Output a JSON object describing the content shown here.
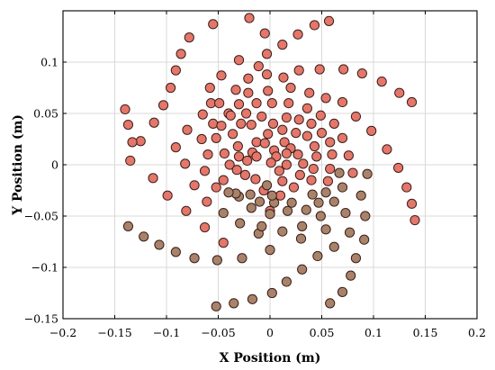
{
  "chart_data": {
    "type": "scatter",
    "title": "",
    "xlabel": "X Position (m)",
    "ylabel": "Y Position (m)",
    "xlim": [
      -0.2,
      0.2
    ],
    "ylim": [
      -0.15,
      0.15
    ],
    "xticks": [
      -0.2,
      -0.15,
      -0.1,
      -0.05,
      0,
      0.05,
      0.1,
      0.15,
      0.2
    ],
    "yticks": [
      -0.15,
      -0.1,
      -0.05,
      0,
      0.05,
      0.1
    ],
    "xtick_labels": [
      "−0.2",
      "−0.15",
      "−0.1",
      "−0.05",
      "0",
      "0.05",
      "0.1",
      "0.15",
      "0.2"
    ],
    "ytick_labels": [
      "−0.15",
      "−0.1",
      "−0.05",
      "0",
      "0.05",
      "0.1"
    ],
    "grid": true,
    "colors": {
      "upper_fill": "#e5766a",
      "lower_fill": "#a8836a",
      "edge": "#3a1f1a"
    },
    "series": [
      {
        "fill": "upper",
        "points": [
          [
            -0.055,
            0.137
          ],
          [
            -0.078,
            0.124
          ],
          [
            -0.086,
            0.108
          ],
          [
            -0.091,
            0.092
          ],
          [
            -0.096,
            0.075
          ],
          [
            -0.103,
            0.058
          ],
          [
            -0.112,
            0.041
          ],
          [
            -0.125,
            0.023
          ],
          [
            -0.135,
            0.004
          ],
          [
            -0.113,
            -0.013
          ],
          [
            -0.099,
            -0.03
          ],
          [
            -0.081,
            -0.045
          ],
          [
            -0.063,
            -0.061
          ],
          [
            -0.045,
            -0.076
          ],
          [
            -0.14,
            0.054
          ],
          [
            -0.137,
            0.039
          ],
          [
            -0.133,
            0.022
          ],
          [
            -0.03,
            0.102
          ],
          [
            -0.047,
            0.087
          ],
          [
            -0.058,
            0.075
          ],
          [
            -0.057,
            0.06
          ],
          [
            -0.065,
            0.049
          ],
          [
            -0.08,
            0.034
          ],
          [
            -0.091,
            0.017
          ],
          [
            -0.082,
            0.001
          ],
          [
            -0.073,
            -0.02
          ],
          [
            -0.061,
            -0.036
          ],
          [
            -0.003,
            0.108
          ],
          [
            -0.011,
            0.096
          ],
          [
            -0.021,
            0.084
          ],
          [
            -0.033,
            0.073
          ],
          [
            -0.049,
            0.06
          ],
          [
            -0.04,
            0.05
          ],
          [
            -0.055,
            0.04
          ],
          [
            -0.066,
            0.025
          ],
          [
            -0.06,
            0.01
          ],
          [
            -0.063,
            -0.006
          ],
          [
            -0.052,
            -0.022
          ],
          [
            -0.003,
            0.088
          ],
          [
            -0.021,
            0.07
          ],
          [
            -0.03,
            0.059
          ],
          [
            -0.038,
            0.048
          ],
          [
            -0.047,
            0.038
          ],
          [
            -0.052,
            0.026
          ],
          [
            -0.044,
            0.011
          ],
          [
            -0.039,
            0.0
          ],
          [
            -0.002,
            0.072
          ],
          [
            -0.013,
            0.06
          ],
          [
            -0.023,
            0.05
          ],
          [
            -0.028,
            0.04
          ],
          [
            -0.036,
            0.03
          ],
          [
            -0.031,
            0.018
          ],
          [
            -0.03,
            0.008
          ],
          [
            -0.022,
            0.004
          ],
          [
            0.002,
            0.06
          ],
          [
            -0.008,
            0.047
          ],
          [
            -0.018,
            0.039
          ],
          [
            -0.013,
            0.022
          ],
          [
            -0.017,
            0.012
          ],
          [
            -0.013,
            0.008
          ],
          [
            0.003,
            0.04
          ],
          [
            -0.002,
            0.03
          ],
          [
            -0.005,
            0.021
          ],
          [
            0.004,
            0.014
          ],
          [
            0.006,
            0.008
          ],
          [
            0.001,
            0.002
          ],
          [
            -0.02,
            0.143
          ],
          [
            -0.005,
            0.128
          ],
          [
            0.012,
            0.117
          ],
          [
            0.027,
            0.127
          ],
          [
            0.043,
            0.136
          ],
          [
            0.057,
            0.14
          ],
          [
            0.013,
            0.085
          ],
          [
            0.028,
            0.092
          ],
          [
            0.048,
            0.093
          ],
          [
            0.071,
            0.093
          ],
          [
            0.089,
            0.089
          ],
          [
            0.108,
            0.081
          ],
          [
            0.125,
            0.07
          ],
          [
            0.137,
            0.061
          ],
          [
            0.02,
            0.075
          ],
          [
            0.038,
            0.07
          ],
          [
            0.054,
            0.065
          ],
          [
            0.07,
            0.061
          ],
          [
            0.083,
            0.047
          ],
          [
            0.098,
            0.033
          ],
          [
            0.113,
            0.015
          ],
          [
            0.124,
            -0.003
          ],
          [
            0.132,
            -0.022
          ],
          [
            0.137,
            -0.038
          ],
          [
            0.14,
            -0.054
          ],
          [
            0.018,
            0.06
          ],
          [
            0.036,
            0.055
          ],
          [
            0.049,
            0.048
          ],
          [
            0.062,
            0.04
          ],
          [
            0.07,
            0.026
          ],
          [
            0.076,
            0.009
          ],
          [
            0.08,
            -0.008
          ],
          [
            0.016,
            0.046
          ],
          [
            0.028,
            0.044
          ],
          [
            0.04,
            0.04
          ],
          [
            0.05,
            0.031
          ],
          [
            0.058,
            0.022
          ],
          [
            0.06,
            0.01
          ],
          [
            0.058,
            -0.004
          ],
          [
            0.056,
            -0.016
          ],
          [
            0.012,
            0.034
          ],
          [
            0.025,
            0.031
          ],
          [
            0.036,
            0.028
          ],
          [
            0.043,
            0.018
          ],
          [
            0.045,
            0.008
          ],
          [
            0.042,
            -0.004
          ],
          [
            0.04,
            -0.015
          ],
          [
            0.014,
            0.022
          ],
          [
            0.02,
            0.016
          ],
          [
            0.027,
            0.01
          ],
          [
            0.032,
            0.001
          ],
          [
            0.029,
            -0.01
          ],
          [
            0.023,
            -0.022
          ],
          [
            0.016,
            0.011
          ],
          [
            0.016,
            0.0
          ],
          [
            0.009,
            -0.006
          ],
          [
            0.012,
            -0.016
          ],
          [
            0.01,
            -0.03
          ],
          [
            -0.006,
            -0.025
          ],
          [
            -0.014,
            -0.014
          ],
          [
            -0.024,
            -0.01
          ],
          [
            -0.032,
            -0.005
          ],
          [
            -0.045,
            -0.015
          ],
          [
            0.0,
            -0.045
          ]
        ]
      },
      {
        "fill": "lower",
        "points": [
          [
            -0.137,
            -0.06
          ],
          [
            -0.122,
            -0.07
          ],
          [
            -0.107,
            -0.078
          ],
          [
            -0.091,
            -0.085
          ],
          [
            -0.073,
            -0.091
          ],
          [
            -0.051,
            -0.093
          ],
          [
            -0.027,
            -0.091
          ],
          [
            0.0,
            -0.083
          ],
          [
            0.03,
            -0.072
          ],
          [
            0.054,
            -0.063
          ],
          [
            0.073,
            -0.047
          ],
          [
            0.088,
            -0.03
          ],
          [
            0.094,
            -0.009
          ],
          [
            -0.052,
            -0.138
          ],
          [
            -0.035,
            -0.135
          ],
          [
            -0.017,
            -0.131
          ],
          [
            0.002,
            -0.125
          ],
          [
            0.016,
            -0.114
          ],
          [
            0.031,
            -0.102
          ],
          [
            0.046,
            -0.089
          ],
          [
            0.062,
            -0.08
          ],
          [
            0.077,
            -0.066
          ],
          [
            0.092,
            -0.05
          ],
          [
            0.091,
            -0.073
          ],
          [
            0.083,
            -0.091
          ],
          [
            0.078,
            -0.108
          ],
          [
            0.07,
            -0.124
          ],
          [
            0.058,
            -0.135
          ],
          [
            -0.045,
            -0.047
          ],
          [
            -0.029,
            -0.057
          ],
          [
            -0.011,
            -0.067
          ],
          [
            0.012,
            -0.065
          ],
          [
            0.031,
            -0.06
          ],
          [
            0.049,
            -0.05
          ],
          [
            0.062,
            -0.036
          ],
          [
            0.07,
            -0.022
          ],
          [
            0.067,
            -0.008
          ],
          [
            -0.03,
            -0.031
          ],
          [
            -0.018,
            -0.042
          ],
          [
            0.0,
            -0.048
          ],
          [
            0.017,
            -0.045
          ],
          [
            0.035,
            -0.044
          ],
          [
            0.047,
            -0.037
          ],
          [
            0.054,
            -0.027
          ],
          [
            0.041,
            -0.029
          ],
          [
            0.021,
            -0.037
          ],
          [
            0.004,
            -0.037
          ],
          [
            -0.01,
            -0.036
          ],
          [
            -0.019,
            -0.029
          ],
          [
            -0.033,
            -0.028
          ],
          [
            -0.04,
            -0.027
          ],
          [
            -0.008,
            -0.06
          ],
          [
            0.002,
            -0.03
          ],
          [
            -0.003,
            -0.02
          ]
        ]
      }
    ]
  }
}
